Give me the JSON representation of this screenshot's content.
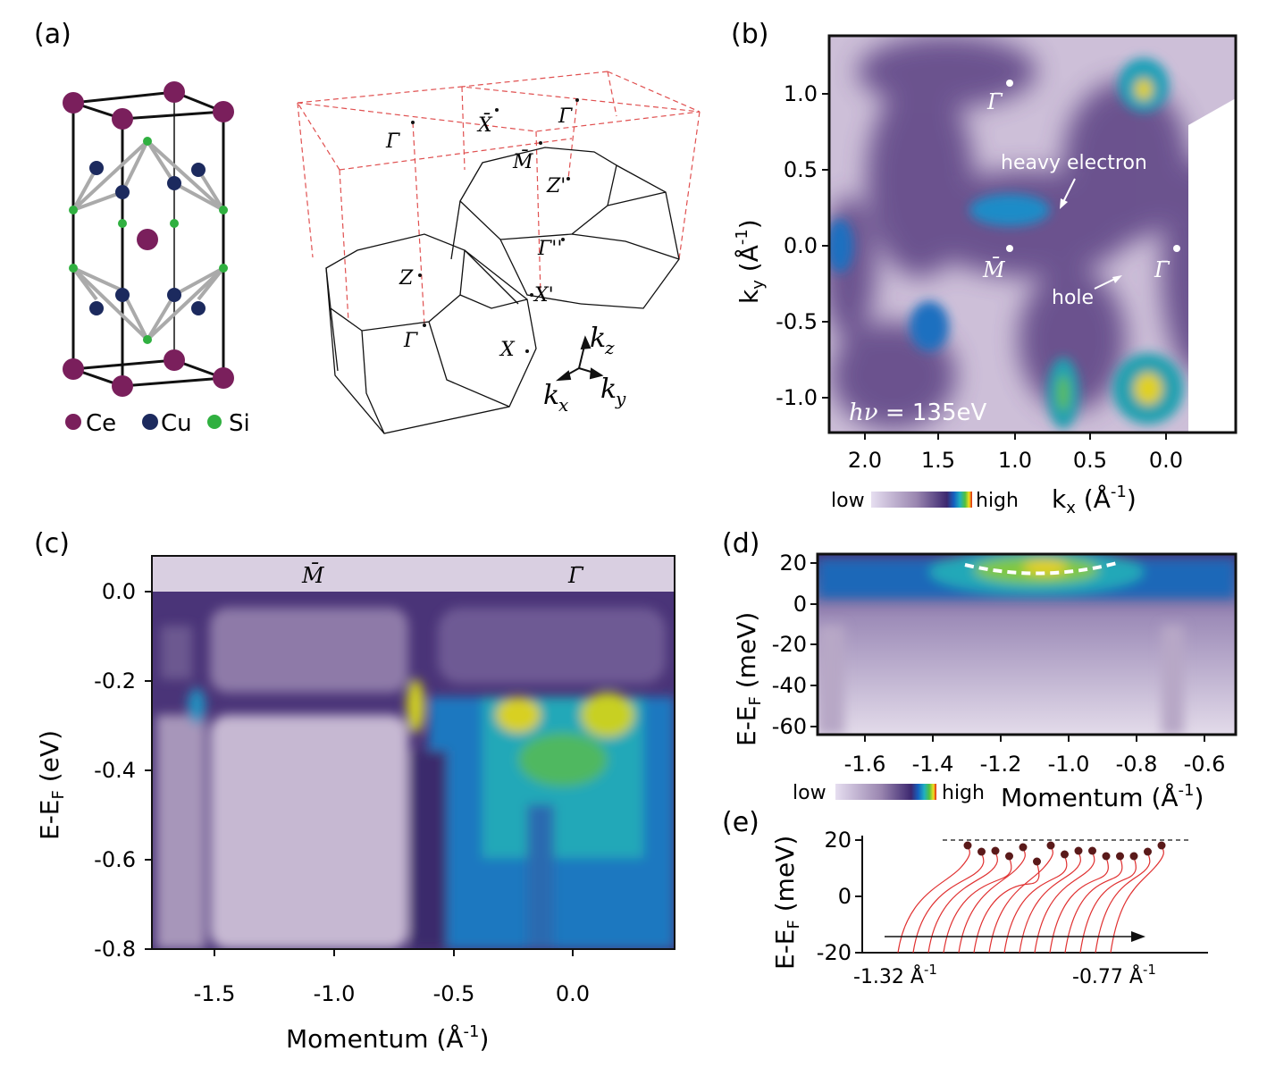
{
  "panel_labels": [
    "(a)",
    "(b)",
    "(c)",
    "(d)",
    "(e)"
  ],
  "a": {
    "legend": [
      "Ce",
      "Cu",
      "Si"
    ],
    "points": [
      "Γ̄",
      "X̄",
      "Γ̄",
      "M̄",
      "Z'",
      "Γ''",
      "X'",
      "Z",
      "Γ",
      "X"
    ],
    "axes": [
      [
        "k",
        "z"
      ],
      [
        "k",
        "x"
      ],
      [
        "k",
        "y"
      ]
    ]
  },
  "b": {
    "yticks": [
      "1.0",
      "0.5",
      "0.0",
      "-0.5",
      "-1.0"
    ],
    "xticks": [
      "2.0",
      "1.5",
      "1.0",
      "0.5",
      "0.0"
    ],
    "ylabel": [
      "k",
      "y",
      " (Å",
      "-1",
      ")"
    ],
    "xlabel": [
      "k",
      "x",
      " (Å",
      "-1",
      ")"
    ],
    "points": [
      "Γ̄",
      "M̄",
      "Γ̄"
    ],
    "annotations": [
      "heavy electron",
      "hole"
    ],
    "photon": [
      "hν",
      " = 135eV"
    ],
    "colorbar": [
      "low",
      "high"
    ]
  },
  "c": {
    "yticks": [
      "0.0",
      "-0.2",
      "-0.4",
      "-0.6",
      "-0.8"
    ],
    "xticks": [
      "-1.5",
      "-1.0",
      "-0.5",
      "0.0"
    ],
    "ylabel": [
      "E-E",
      "F",
      " (eV)"
    ],
    "xlabel": [
      "Momentum (Å",
      "-1",
      ")"
    ],
    "points": [
      "M̄",
      "Γ̄"
    ]
  },
  "d": {
    "yticks": [
      "20",
      "0",
      "-20",
      "-40",
      "-60"
    ],
    "xticks": [
      "-1.6",
      "-1.4",
      "-1.2",
      "-1.0",
      "-0.8",
      "-0.6"
    ],
    "ylabel": [
      "E-E",
      "F",
      " (meV)"
    ],
    "xlabel": [
      "Momentum (Å",
      "-1",
      ")"
    ],
    "colorbar": [
      "low",
      "high"
    ]
  },
  "e": {
    "yticks": [
      "20",
      "0",
      "-20"
    ],
    "ylabel": [
      "E-E",
      "F",
      " (meV)"
    ],
    "x_annotations": [
      [
        "-1.32 Å",
        "-1"
      ],
      [
        "-0.77 Å",
        "-1"
      ]
    ]
  }
}
